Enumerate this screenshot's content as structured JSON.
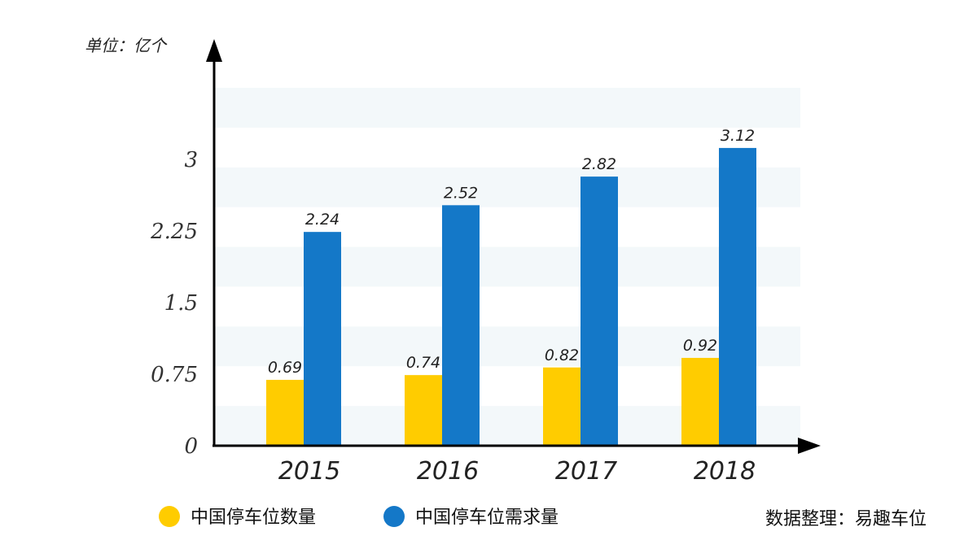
{
  "chart_data": {
    "type": "bar",
    "unit_label": "单位：亿个",
    "categories": [
      "2015",
      "2016",
      "2017",
      "2018"
    ],
    "series": [
      {
        "name": "中国停车位数量",
        "color": "#FFCC00",
        "values": [
          0.69,
          0.74,
          0.82,
          0.92
        ]
      },
      {
        "name": "中国停车位需求量",
        "color": "#1478C8",
        "values": [
          2.24,
          2.52,
          2.82,
          3.12
        ]
      }
    ],
    "yticks": [
      "0",
      "0.75",
      "1.5",
      "2.25",
      "3"
    ],
    "ylim": [
      0,
      3.75
    ],
    "grid": "alternating horizontal bands",
    "legend_position": "bottom-left"
  },
  "source": "数据整理：易趣车位"
}
